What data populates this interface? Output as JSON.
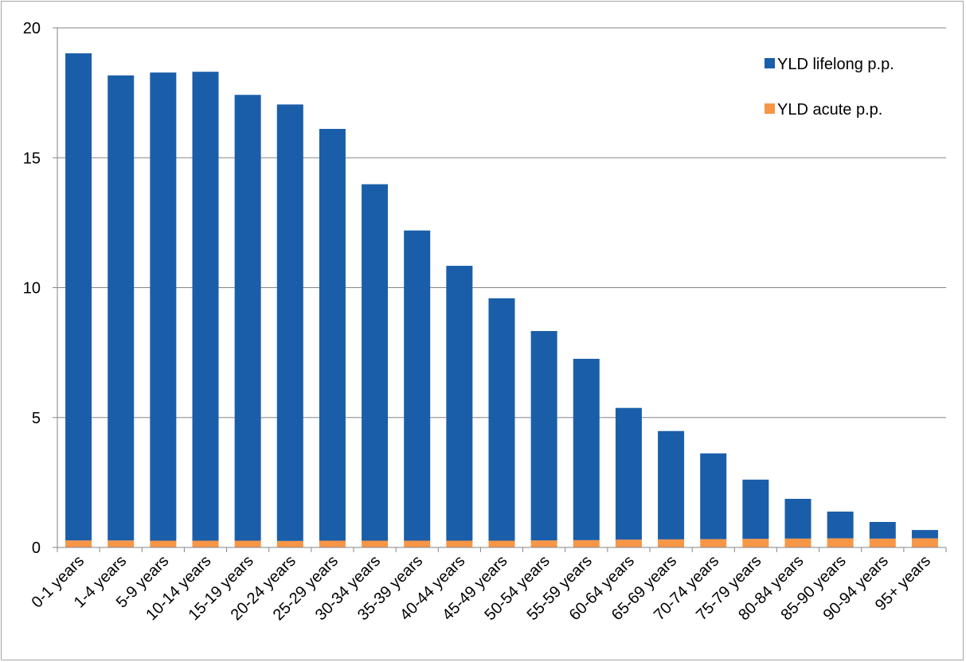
{
  "chart_data": {
    "type": "bar",
    "stacked": true,
    "categories": [
      "0-1 years",
      "1-4 years",
      "5-9 years",
      "10-14 years",
      "15-19 years",
      "20-24 years",
      "25-29 years",
      "30-34 years",
      "35-39 years",
      "40-44 years",
      "45-49 years",
      "50-54 years",
      "55-59 years",
      "60-64 years",
      "65-69 years",
      "70-74 years",
      "75-79 years",
      "80-84 years",
      "85-90 years",
      "90-94 years",
      "95+ years"
    ],
    "series": [
      {
        "name": "YLD acute p.p.",
        "color": "#f79646",
        "values": [
          0.27,
          0.27,
          0.26,
          0.26,
          0.26,
          0.25,
          0.26,
          0.26,
          0.26,
          0.26,
          0.26,
          0.27,
          0.28,
          0.3,
          0.31,
          0.32,
          0.33,
          0.34,
          0.35,
          0.34,
          0.35
        ]
      },
      {
        "name": "YLD lifelong p.p.",
        "color": "#1a5ea9",
        "values": [
          18.75,
          17.9,
          18.02,
          18.05,
          17.16,
          16.8,
          15.85,
          13.72,
          11.94,
          10.58,
          9.33,
          8.06,
          6.98,
          5.07,
          4.17,
          3.3,
          2.28,
          1.53,
          1.03,
          0.64,
          0.32
        ]
      }
    ],
    "legend_order": [
      "YLD lifelong p.p.",
      "YLD acute p.p."
    ],
    "legend_position": "top-right",
    "y_ticks": [
      0,
      5,
      10,
      15,
      20
    ],
    "ylim": [
      0,
      20
    ],
    "grid": true,
    "title": "",
    "xlabel": "",
    "ylabel": ""
  }
}
